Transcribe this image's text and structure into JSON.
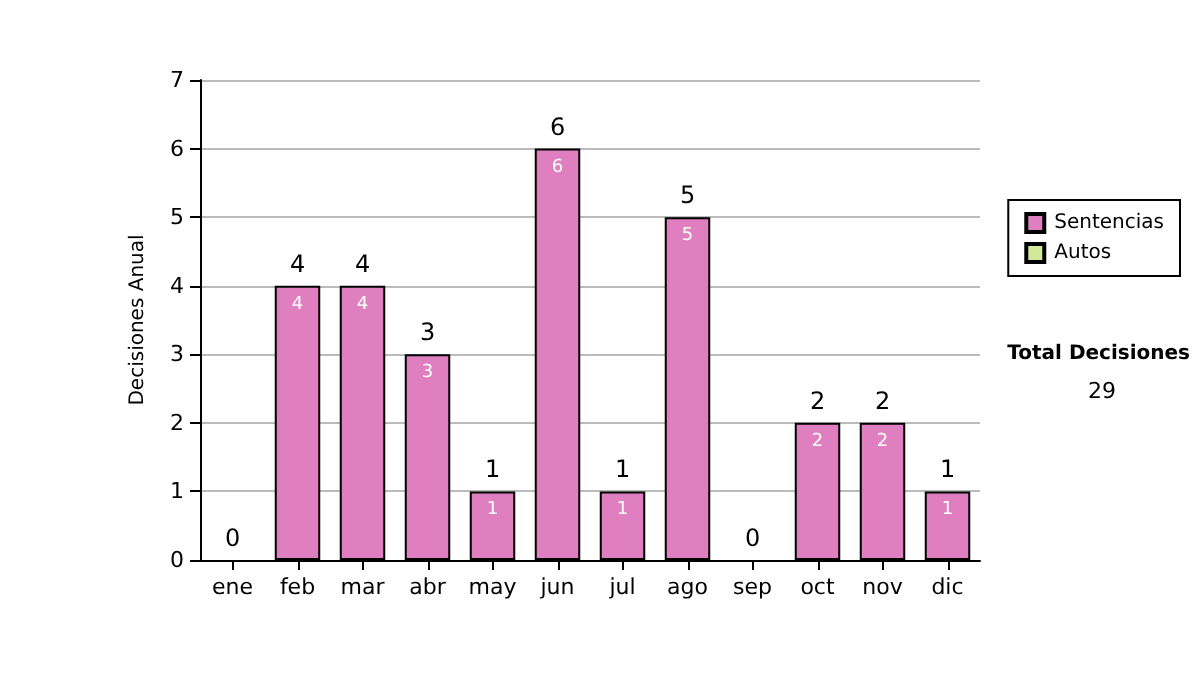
{
  "chart_data": {
    "type": "bar",
    "ylabel": "Decisiones Anual",
    "categories": [
      "ene",
      "feb",
      "mar",
      "abr",
      "may",
      "jun",
      "jul",
      "ago",
      "sep",
      "oct",
      "nov",
      "dic"
    ],
    "series": [
      {
        "name": "Sentencias",
        "color": "#e07fbf",
        "values": [
          0,
          4,
          4,
          3,
          1,
          6,
          1,
          5,
          0,
          2,
          2,
          1
        ],
        "value_labels": [
          null,
          "4",
          "4",
          "3",
          "1",
          "6",
          "1",
          "5",
          null,
          "2",
          "2",
          "1"
        ]
      },
      {
        "name": "Autos",
        "color": "#d4e89c",
        "values": [
          0,
          0,
          0,
          0,
          0,
          0,
          0,
          0,
          0,
          0,
          0,
          0
        ]
      }
    ],
    "stacked": true,
    "totals": [
      "0",
      "4",
      "4",
      "3",
      "1",
      "6",
      "1",
      "5",
      "0",
      "2",
      "2",
      "1"
    ],
    "ylim": [
      0,
      7
    ],
    "yticks": [
      0,
      1,
      2,
      3,
      4,
      5,
      6,
      7
    ],
    "grid": "y",
    "legend": "right",
    "annotations": [
      "Total Decisiones",
      "29"
    ]
  }
}
